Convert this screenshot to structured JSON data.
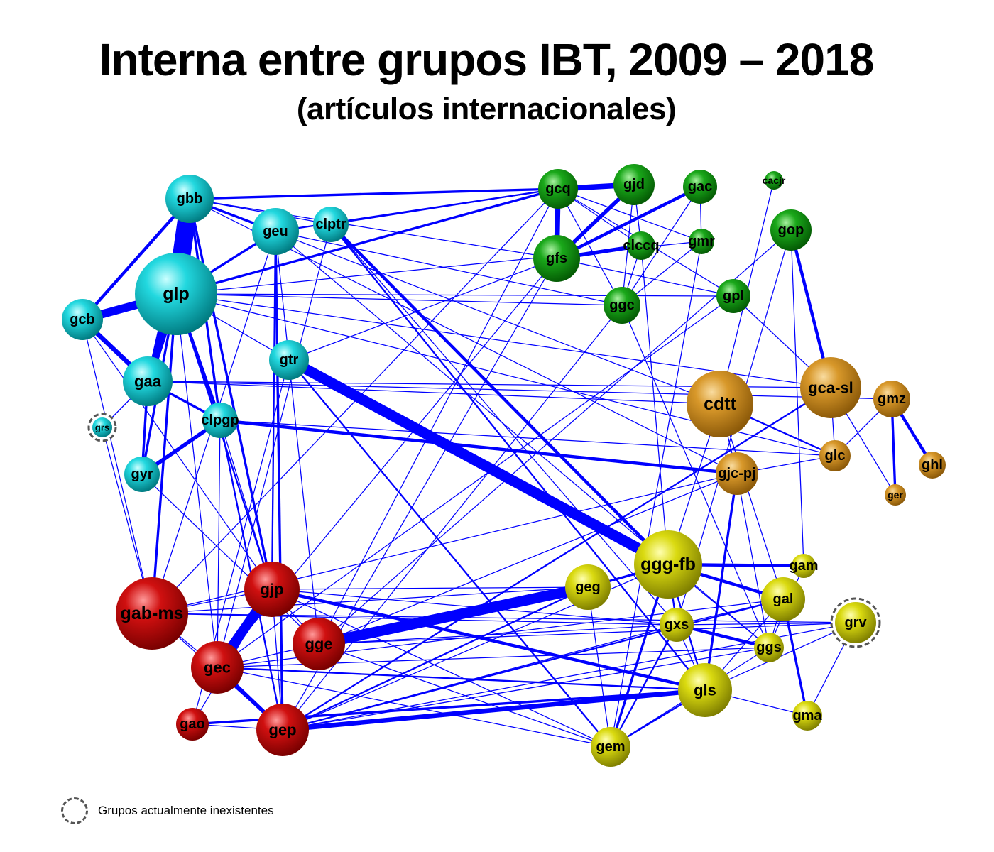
{
  "title": "Interna entre grupos IBT, 2009 – 2018",
  "subtitle": "(artículos internacionales)",
  "legend": {
    "label": "Grupos actualmente inexistentes"
  },
  "colors": {
    "edge": "#0000ff",
    "cluster_cyan": "#00b5bd",
    "cluster_green": "#0a8a0a",
    "cluster_orange": "#c98a1e",
    "cluster_red": "#c00000",
    "cluster_yellow": "#c8c800",
    "defunct_ring": "#555555"
  },
  "nodes": [
    {
      "id": "gbb",
      "label": "gbb",
      "cluster": "cyan"
    },
    {
      "id": "geu",
      "label": "geu",
      "cluster": "cyan"
    },
    {
      "id": "clptr",
      "label": "clptr",
      "cluster": "cyan"
    },
    {
      "id": "glp",
      "label": "glp",
      "cluster": "cyan"
    },
    {
      "id": "gcb",
      "label": "gcb",
      "cluster": "cyan"
    },
    {
      "id": "gaa",
      "label": "gaa",
      "cluster": "cyan"
    },
    {
      "id": "gtr",
      "label": "gtr",
      "cluster": "cyan"
    },
    {
      "id": "grs",
      "label": "grs",
      "cluster": "cyan",
      "defunct": true
    },
    {
      "id": "clpgp",
      "label": "clpgp",
      "cluster": "cyan"
    },
    {
      "id": "gyr",
      "label": "gyr",
      "cluster": "cyan"
    },
    {
      "id": "gcq",
      "label": "gcq",
      "cluster": "green"
    },
    {
      "id": "gjd",
      "label": "gjd",
      "cluster": "green"
    },
    {
      "id": "gac",
      "label": "gac",
      "cluster": "green"
    },
    {
      "id": "cacjr",
      "label": "cacjr",
      "cluster": "green"
    },
    {
      "id": "gfs",
      "label": "gfs",
      "cluster": "green"
    },
    {
      "id": "clccq",
      "label": "clccq",
      "cluster": "green"
    },
    {
      "id": "gmr",
      "label": "gmr",
      "cluster": "green"
    },
    {
      "id": "gop",
      "label": "gop",
      "cluster": "green"
    },
    {
      "id": "ggc",
      "label": "ggc",
      "cluster": "green"
    },
    {
      "id": "gpl",
      "label": "gpl",
      "cluster": "green"
    },
    {
      "id": "cdtt",
      "label": "cdtt",
      "cluster": "orange"
    },
    {
      "id": "gca-sl",
      "label": "gca-sl",
      "cluster": "orange"
    },
    {
      "id": "gmz",
      "label": "gmz",
      "cluster": "orange"
    },
    {
      "id": "glc",
      "label": "glc",
      "cluster": "orange"
    },
    {
      "id": "ghl",
      "label": "ghl",
      "cluster": "orange"
    },
    {
      "id": "gjc-pj",
      "label": "gjc-pj",
      "cluster": "orange"
    },
    {
      "id": "ger",
      "label": "ger",
      "cluster": "orange"
    },
    {
      "id": "gab-ms",
      "label": "gab-ms",
      "cluster": "red"
    },
    {
      "id": "gjp",
      "label": "gjp",
      "cluster": "red"
    },
    {
      "id": "gge",
      "label": "gge",
      "cluster": "red"
    },
    {
      "id": "gec",
      "label": "gec",
      "cluster": "red"
    },
    {
      "id": "gao",
      "label": "gao",
      "cluster": "red"
    },
    {
      "id": "gep",
      "label": "gep",
      "cluster": "red"
    },
    {
      "id": "ggg-fb",
      "label": "ggg-fb",
      "cluster": "yellow"
    },
    {
      "id": "gam",
      "label": "gam",
      "cluster": "yellow"
    },
    {
      "id": "geg",
      "label": "geg",
      "cluster": "yellow"
    },
    {
      "id": "gal",
      "label": "gal",
      "cluster": "yellow"
    },
    {
      "id": "grv",
      "label": "grv",
      "cluster": "yellow",
      "defunct": true
    },
    {
      "id": "gxs",
      "label": "gxs",
      "cluster": "yellow"
    },
    {
      "id": "ggs",
      "label": "ggs",
      "cluster": "yellow"
    },
    {
      "id": "gls",
      "label": "gls",
      "cluster": "yellow"
    },
    {
      "id": "gma",
      "label": "gma",
      "cluster": "yellow"
    },
    {
      "id": "gem",
      "label": "gem",
      "cluster": "yellow"
    }
  ],
  "edges": [
    {
      "source": "gbb",
      "target": "glp",
      "weight": 24
    },
    {
      "source": "gbb",
      "target": "gcb",
      "weight": 4
    },
    {
      "source": "gbb",
      "target": "gaa",
      "weight": 4
    },
    {
      "source": "gbb",
      "target": "geu",
      "weight": 3
    },
    {
      "source": "gbb",
      "target": "clpgp",
      "weight": 3
    },
    {
      "source": "gbb",
      "target": "gcq",
      "weight": 3
    },
    {
      "source": "gbb",
      "target": "gjp",
      "weight": 3
    },
    {
      "source": "gbb",
      "target": "gfs",
      "weight": 1
    },
    {
      "source": "gbb",
      "target": "gjc-pj",
      "weight": 1
    },
    {
      "source": "gbb",
      "target": "cdtt",
      "weight": 1
    },
    {
      "source": "gbb",
      "target": "clptr",
      "weight": 1
    },
    {
      "source": "glp",
      "target": "gcb",
      "weight": 11
    },
    {
      "source": "glp",
      "target": "gaa",
      "weight": 10
    },
    {
      "source": "glp",
      "target": "geu",
      "weight": 3
    },
    {
      "source": "glp",
      "target": "gab-ms",
      "weight": 3
    },
    {
      "source": "glp",
      "target": "clpgp",
      "weight": 4
    },
    {
      "source": "glp",
      "target": "gcq",
      "weight": 3
    },
    {
      "source": "glp",
      "target": "gtr",
      "weight": 1
    },
    {
      "source": "glp",
      "target": "gjp",
      "weight": 2
    },
    {
      "source": "glp",
      "target": "gyr",
      "weight": 3
    },
    {
      "source": "glp",
      "target": "gca-sl",
      "weight": 1
    },
    {
      "source": "glp",
      "target": "gpl",
      "weight": 1
    },
    {
      "source": "glp",
      "target": "ggc",
      "weight": 1
    },
    {
      "source": "glp",
      "target": "gmr",
      "weight": 1
    },
    {
      "source": "glp",
      "target": "glc",
      "weight": 1
    },
    {
      "source": "glp",
      "target": "gec",
      "weight": 1
    },
    {
      "source": "gcb",
      "target": "gaa",
      "weight": 6
    },
    {
      "source": "gcb",
      "target": "gab-ms",
      "weight": 1
    },
    {
      "source": "gcb",
      "target": "gjp",
      "weight": 1
    },
    {
      "source": "gaa",
      "target": "clpgp",
      "weight": 3
    },
    {
      "source": "gaa",
      "target": "gyr",
      "weight": 3
    },
    {
      "source": "gaa",
      "target": "grs",
      "weight": 1
    },
    {
      "source": "gaa",
      "target": "cdtt",
      "weight": 1
    },
    {
      "source": "gaa",
      "target": "gca-sl",
      "weight": 1
    },
    {
      "source": "gaa",
      "target": "gmz",
      "weight": 1
    },
    {
      "source": "geu",
      "target": "gcq",
      "weight": 2
    },
    {
      "source": "geu",
      "target": "gjp",
      "weight": 2
    },
    {
      "source": "geu",
      "target": "gep",
      "weight": 3
    },
    {
      "source": "geu",
      "target": "gtr",
      "weight": 1
    },
    {
      "source": "geu",
      "target": "ggc",
      "weight": 1
    },
    {
      "source": "geu",
      "target": "ggs",
      "weight": 1
    },
    {
      "source": "geu",
      "target": "gab-ms",
      "weight": 1
    },
    {
      "source": "clptr",
      "target": "gcq",
      "weight": 1
    },
    {
      "source": "clptr",
      "target": "ggg-fb",
      "weight": 4
    },
    {
      "source": "clptr",
      "target": "gls",
      "weight": 2
    },
    {
      "source": "clptr",
      "target": "gxs",
      "weight": 1
    },
    {
      "source": "clptr",
      "target": "gec",
      "weight": 1
    },
    {
      "source": "gtr",
      "target": "ggg-fb",
      "weight": 14
    },
    {
      "source": "gtr",
      "target": "gem",
      "weight": 2
    },
    {
      "source": "gtr",
      "target": "gfs",
      "weight": 1
    },
    {
      "source": "gtr",
      "target": "gge",
      "weight": 1
    },
    {
      "source": "gtr",
      "target": "gao",
      "weight": 1
    },
    {
      "source": "clpgp",
      "target": "gyr",
      "weight": 5
    },
    {
      "source": "clpgp",
      "target": "gjc-pj",
      "weight": 4
    },
    {
      "source": "clpgp",
      "target": "gep",
      "weight": 2
    },
    {
      "source": "clpgp",
      "target": "gec",
      "weight": 1
    },
    {
      "source": "clpgp",
      "target": "gjp",
      "weight": 1
    },
    {
      "source": "clpgp",
      "target": "glc",
      "weight": 1
    },
    {
      "source": "grs",
      "target": "gab-ms",
      "weight": 1
    },
    {
      "source": "gyr",
      "target": "gge",
      "weight": 1
    },
    {
      "source": "gcq",
      "target": "gjd",
      "weight": 7
    },
    {
      "source": "gcq",
      "target": "gfs",
      "weight": 7
    },
    {
      "source": "gcq",
      "target": "clccq",
      "weight": 1
    },
    {
      "source": "gcq",
      "target": "ggc",
      "weight": 1
    },
    {
      "source": "gcq",
      "target": "gmr",
      "weight": 1
    },
    {
      "source": "gcq",
      "target": "gpl",
      "weight": 1
    },
    {
      "source": "gcq",
      "target": "gab-ms",
      "weight": 1
    },
    {
      "source": "gcq",
      "target": "gge",
      "weight": 1
    },
    {
      "source": "gjd",
      "target": "gfs",
      "weight": 5
    },
    {
      "source": "gjd",
      "target": "clccq",
      "weight": 1
    },
    {
      "source": "gjd",
      "target": "ggc",
      "weight": 1
    },
    {
      "source": "gac",
      "target": "gfs",
      "weight": 4
    },
    {
      "source": "gac",
      "target": "ggc",
      "weight": 1
    },
    {
      "source": "gac",
      "target": "gmr",
      "weight": 1
    },
    {
      "source": "gfs",
      "target": "clccq",
      "weight": 5
    },
    {
      "source": "gfs",
      "target": "gpl",
      "weight": 1
    },
    {
      "source": "gfs",
      "target": "gep",
      "weight": 1
    },
    {
      "source": "gfs",
      "target": "gec",
      "weight": 1
    },
    {
      "source": "clccq",
      "target": "ggc",
      "weight": 1
    },
    {
      "source": "clccq",
      "target": "ggg-fb",
      "weight": 1
    },
    {
      "source": "gmr",
      "target": "gem",
      "weight": 1
    },
    {
      "source": "gmr",
      "target": "ggc",
      "weight": 1
    },
    {
      "source": "gop",
      "target": "gca-sl",
      "weight": 4
    },
    {
      "source": "gop",
      "target": "gam",
      "weight": 1
    },
    {
      "source": "gop",
      "target": "gxs",
      "weight": 1
    },
    {
      "source": "gop",
      "target": "gge",
      "weight": 1
    },
    {
      "source": "cacjr",
      "target": "cdtt",
      "weight": 1
    },
    {
      "source": "ggc",
      "target": "gep",
      "weight": 1
    },
    {
      "source": "ggc",
      "target": "ggs",
      "weight": 1
    },
    {
      "source": "gpl",
      "target": "gca-sl",
      "weight": 1
    },
    {
      "source": "gpl",
      "target": "gec",
      "weight": 1
    },
    {
      "source": "cdtt",
      "target": "glc",
      "weight": 2
    },
    {
      "source": "cdtt",
      "target": "gjc-pj",
      "weight": 1
    },
    {
      "source": "cdtt",
      "target": "gal",
      "weight": 1
    },
    {
      "source": "cdtt",
      "target": "gem",
      "weight": 1
    },
    {
      "source": "gca-sl",
      "target": "glc",
      "weight": 1
    },
    {
      "source": "gca-sl",
      "target": "gep",
      "weight": 2
    },
    {
      "source": "gca-sl",
      "target": "ger",
      "weight": 1
    },
    {
      "source": "gmz",
      "target": "ghl",
      "weight": 4
    },
    {
      "source": "gmz",
      "target": "ger",
      "weight": 3
    },
    {
      "source": "gmz",
      "target": "glc",
      "weight": 1
    },
    {
      "source": "glc",
      "target": "gjc-pj",
      "weight": 1
    },
    {
      "source": "gjc-pj",
      "target": "gls",
      "weight": 3
    },
    {
      "source": "gjc-pj",
      "target": "ggs",
      "weight": 1
    },
    {
      "source": "gjc-pj",
      "target": "gab-ms",
      "weight": 1
    },
    {
      "source": "gjc-pj",
      "target": "gge",
      "weight": 1
    },
    {
      "source": "gab-ms",
      "target": "gec",
      "weight": 1
    },
    {
      "source": "gab-ms",
      "target": "gep",
      "weight": 1
    },
    {
      "source": "gab-ms",
      "target": "gxs",
      "weight": 1
    },
    {
      "source": "gab-ms",
      "target": "geg",
      "weight": 1
    },
    {
      "source": "gab-ms",
      "target": "gjp",
      "weight": 1
    },
    {
      "source": "gab-ms",
      "target": "grv",
      "weight": 1
    },
    {
      "source": "gjp",
      "target": "gec",
      "weight": 13
    },
    {
      "source": "gjp",
      "target": "gls",
      "weight": 4
    },
    {
      "source": "gjp",
      "target": "gge",
      "weight": 1
    },
    {
      "source": "gjp",
      "target": "gep",
      "weight": 1
    },
    {
      "source": "gjp",
      "target": "gem",
      "weight": 1
    },
    {
      "source": "gjp",
      "target": "geg",
      "weight": 1
    },
    {
      "source": "gjp",
      "target": "gao",
      "weight": 1
    },
    {
      "source": "gjp",
      "target": "gxs",
      "weight": 1
    },
    {
      "source": "gge",
      "target": "geg",
      "weight": 14
    },
    {
      "source": "gge",
      "target": "gem",
      "weight": 1
    },
    {
      "source": "gge",
      "target": "gxs",
      "weight": 1
    },
    {
      "source": "gge",
      "target": "gec",
      "weight": 1
    },
    {
      "source": "gge",
      "target": "grv",
      "weight": 1
    },
    {
      "source": "gec",
      "target": "gep",
      "weight": 5
    },
    {
      "source": "gec",
      "target": "gls",
      "weight": 2
    },
    {
      "source": "gec",
      "target": "gal",
      "weight": 1
    },
    {
      "source": "gec",
      "target": "ggs",
      "weight": 1
    },
    {
      "source": "gec",
      "target": "gem",
      "weight": 1
    },
    {
      "source": "gao",
      "target": "gls",
      "weight": 3
    },
    {
      "source": "gao",
      "target": "gep",
      "weight": 1
    },
    {
      "source": "gep",
      "target": "gls",
      "weight": 6
    },
    {
      "source": "gep",
      "target": "ggg-fb",
      "weight": 1
    },
    {
      "source": "gep",
      "target": "gxs",
      "weight": 1
    },
    {
      "source": "gep",
      "target": "geg",
      "weight": 2
    },
    {
      "source": "gep",
      "target": "gal",
      "weight": 2
    },
    {
      "source": "gep",
      "target": "ggs",
      "weight": 1
    },
    {
      "source": "gep",
      "target": "grv",
      "weight": 1
    },
    {
      "source": "ggg-fb",
      "target": "gam",
      "weight": 4
    },
    {
      "source": "ggg-fb",
      "target": "gal",
      "weight": 4
    },
    {
      "source": "ggg-fb",
      "target": "geg",
      "weight": 3
    },
    {
      "source": "ggg-fb",
      "target": "gxs",
      "weight": 2
    },
    {
      "source": "ggg-fb",
      "target": "gem",
      "weight": 3
    },
    {
      "source": "ggg-fb",
      "target": "gls",
      "weight": 2
    },
    {
      "source": "ggg-fb",
      "target": "ggs",
      "weight": 1
    },
    {
      "source": "gal",
      "target": "gma",
      "weight": 3
    },
    {
      "source": "gal",
      "target": "gxs",
      "weight": 1
    },
    {
      "source": "gal",
      "target": "ggs",
      "weight": 1
    },
    {
      "source": "gal",
      "target": "gls",
      "weight": 1
    },
    {
      "source": "gxs",
      "target": "ggs",
      "weight": 4
    },
    {
      "source": "gxs",
      "target": "gem",
      "weight": 2
    },
    {
      "source": "gxs",
      "target": "grv",
      "weight": 1
    },
    {
      "source": "gxs",
      "target": "gls",
      "weight": 1
    },
    {
      "source": "gls",
      "target": "gma",
      "weight": 1
    },
    {
      "source": "gls",
      "target": "gem",
      "weight": 2
    },
    {
      "source": "gls",
      "target": "grv",
      "weight": 1
    },
    {
      "source": "grv",
      "target": "gma",
      "weight": 1
    },
    {
      "source": "ggs",
      "target": "gam",
      "weight": 1
    },
    {
      "source": "gem",
      "target": "geg",
      "weight": 1
    },
    {
      "source": "gem",
      "target": "ggs",
      "weight": 1
    }
  ]
}
